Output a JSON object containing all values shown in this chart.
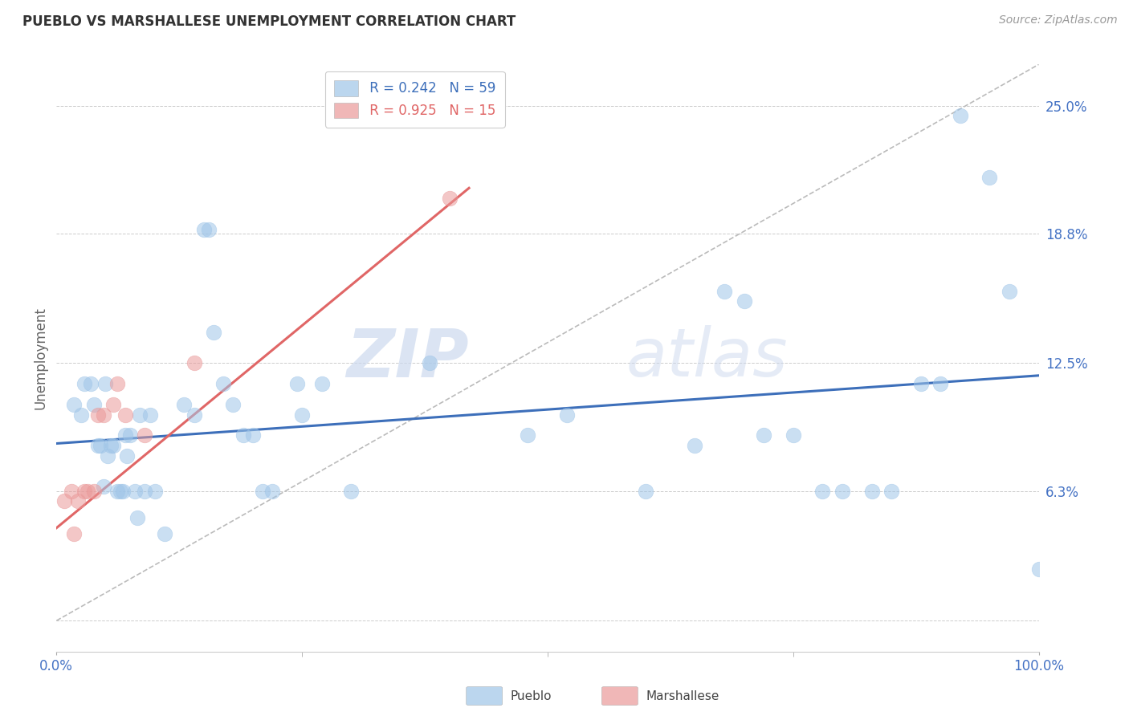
{
  "title": "PUEBLO VS MARSHALLESE UNEMPLOYMENT CORRELATION CHART",
  "source": "Source: ZipAtlas.com",
  "ylabel": "Unemployment",
  "pueblo_color": "#9fc5e8",
  "marshallese_color": "#ea9999",
  "pueblo_line_color": "#3d6fba",
  "marshallese_line_color": "#e06666",
  "diag_line_color": "#bbbbbb",
  "legend_R_pueblo": "0.242",
  "legend_N_pueblo": "59",
  "legend_R_marshallese": "0.925",
  "legend_N_marshallese": "15",
  "watermark_zip": "ZIP",
  "watermark_atlas": "atlas",
  "xlim": [
    0.0,
    1.0
  ],
  "ylim": [
    -0.015,
    0.27
  ],
  "ytick_vals": [
    0.0,
    0.063,
    0.125,
    0.188,
    0.25
  ],
  "ytick_labels": [
    "",
    "6.3%",
    "12.5%",
    "18.8%",
    "25.0%"
  ],
  "pueblo_points_x": [
    0.018,
    0.025,
    0.028,
    0.035,
    0.038,
    0.042,
    0.045,
    0.048,
    0.05,
    0.052,
    0.055,
    0.058,
    0.062,
    0.065,
    0.068,
    0.07,
    0.072,
    0.075,
    0.08,
    0.082,
    0.085,
    0.09,
    0.095,
    0.1,
    0.11,
    0.13,
    0.14,
    0.15,
    0.155,
    0.16,
    0.17,
    0.18,
    0.19,
    0.2,
    0.21,
    0.22,
    0.245,
    0.25,
    0.27,
    0.3,
    0.38,
    0.48,
    0.52,
    0.6,
    0.65,
    0.68,
    0.7,
    0.72,
    0.75,
    0.78,
    0.8,
    0.83,
    0.85,
    0.88,
    0.9,
    0.92,
    0.95,
    0.97,
    1.0
  ],
  "pueblo_points_y": [
    0.105,
    0.1,
    0.115,
    0.115,
    0.105,
    0.085,
    0.085,
    0.065,
    0.115,
    0.08,
    0.085,
    0.085,
    0.063,
    0.063,
    0.063,
    0.09,
    0.08,
    0.09,
    0.063,
    0.05,
    0.1,
    0.063,
    0.1,
    0.063,
    0.042,
    0.105,
    0.1,
    0.19,
    0.19,
    0.14,
    0.115,
    0.105,
    0.09,
    0.09,
    0.063,
    0.063,
    0.115,
    0.1,
    0.115,
    0.063,
    0.125,
    0.09,
    0.1,
    0.063,
    0.085,
    0.16,
    0.155,
    0.09,
    0.09,
    0.063,
    0.063,
    0.063,
    0.063,
    0.115,
    0.115,
    0.245,
    0.215,
    0.16,
    0.025
  ],
  "marshallese_points_x": [
    0.008,
    0.015,
    0.018,
    0.022,
    0.028,
    0.032,
    0.038,
    0.042,
    0.048,
    0.058,
    0.062,
    0.07,
    0.09,
    0.14,
    0.4
  ],
  "marshallese_points_y": [
    0.058,
    0.063,
    0.042,
    0.058,
    0.063,
    0.063,
    0.063,
    0.1,
    0.1,
    0.105,
    0.115,
    0.1,
    0.09,
    0.125,
    0.205
  ],
  "pueblo_trend_x": [
    0.0,
    1.0
  ],
  "pueblo_trend_y": [
    0.086,
    0.119
  ],
  "marshallese_trend_x": [
    0.0,
    0.42
  ],
  "marshallese_trend_y": [
    0.045,
    0.21
  ],
  "diag_line_x": [
    0.0,
    1.0
  ],
  "diag_line_y": [
    0.0,
    0.27
  ]
}
